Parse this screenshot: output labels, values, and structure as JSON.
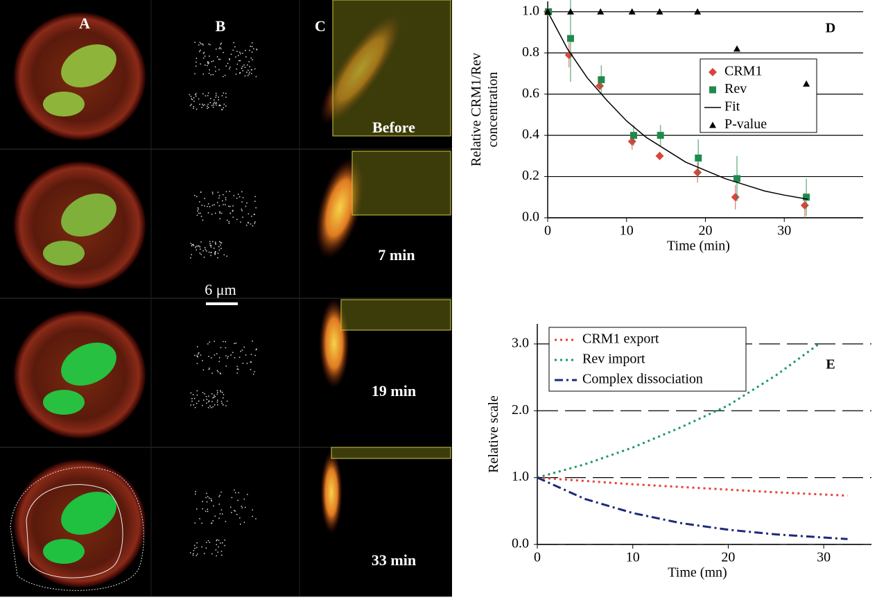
{
  "figure": {
    "panels": [
      "A",
      "B",
      "C"
    ],
    "times": [
      "Before",
      "7 min",
      "19 min",
      "33 min"
    ],
    "scale_bar": "6 μm"
  },
  "chart_data": [
    {
      "type": "scatter",
      "panel_label": "D",
      "xlabel": "Time (min)",
      "ylabel": [
        "Relative CRM1/Rev",
        "concentration"
      ],
      "xlim": [
        0,
        40
      ],
      "xticks": [
        0,
        10,
        20,
        30
      ],
      "ylim": [
        0,
        1.05
      ],
      "yticks": [
        {
          "value": 0,
          "label": "0.0"
        },
        0.2,
        0.4,
        0.6,
        0.8,
        {
          "value": 1,
          "label": "1.0"
        }
      ],
      "grid": true,
      "grid_style": "solid",
      "legend": "right",
      "series": [
        {
          "name": "CRM1",
          "color": "#d9453c",
          "marker": "diamond",
          "x": [
            0,
            2.7,
            6.6,
            10.7,
            14.2,
            19,
            23.8,
            32.6
          ],
          "values": [
            1,
            0.79,
            0.64,
            0.37,
            0.3,
            0.22,
            0.1,
            0.06
          ],
          "errors": [
            0,
            0.06,
            0.02,
            0.04,
            0.02,
            0.05,
            0.06,
            0.06
          ]
        },
        {
          "name": "Rev",
          "color": "#1f8a4c",
          "marker": "square",
          "x": [
            0.1,
            2.9,
            6.8,
            10.9,
            14.3,
            19.1,
            24,
            32.8
          ],
          "values": [
            1,
            0.87,
            0.67,
            0.4,
            0.4,
            0.29,
            0.19,
            0.1
          ],
          "errors": [
            0,
            0.21,
            0.07,
            0.05,
            0.05,
            0.09,
            0.11,
            0.09
          ]
        },
        {
          "name": "Fit",
          "color": "#000000",
          "line": "solid",
          "x": [
            0,
            2.5,
            5,
            7.5,
            10,
            12.5,
            15,
            17.5,
            20,
            22.5,
            25,
            27.5,
            30,
            33
          ],
          "values": [
            1,
            0.82,
            0.68,
            0.57,
            0.47,
            0.39,
            0.33,
            0.27,
            0.23,
            0.19,
            0.16,
            0.13,
            0.11,
            0.09
          ]
        },
        {
          "name": "P-value",
          "color": "#000000",
          "marker": "triangle",
          "x": [
            0,
            2.9,
            6.7,
            10.7,
            14.2,
            19,
            24,
            32.8
          ],
          "values": [
            1,
            1,
            1,
            1,
            1,
            1,
            0.82,
            0.65
          ]
        }
      ]
    },
    {
      "type": "line",
      "panel_label": "E",
      "xlabel": "Time (mn)",
      "ylabel": [
        "Relative scale"
      ],
      "xlim": [
        0,
        35
      ],
      "xticks": [
        0,
        10,
        20,
        30
      ],
      "ylim": [
        0,
        3.3
      ],
      "yticks": [
        {
          "value": 0,
          "label": "0.0"
        },
        {
          "value": 1,
          "label": "1.0"
        },
        {
          "value": 2,
          "label": "2.0"
        },
        {
          "value": 3,
          "label": "3.0"
        }
      ],
      "grid": true,
      "grid_style": "dashed",
      "legend": "top-left",
      "series": [
        {
          "name": "CRM1 export",
          "color": "#e8403a",
          "line": "dotted",
          "x": [
            0,
            5,
            10,
            15,
            20,
            25,
            32.5
          ],
          "values": [
            1,
            0.95,
            0.9,
            0.86,
            0.82,
            0.78,
            0.73
          ]
        },
        {
          "name": "Rev import",
          "color": "#1a9a60",
          "line": "dotted",
          "x": [
            0,
            5,
            10,
            15,
            20,
            25,
            29.5
          ],
          "values": [
            1,
            1.2,
            1.45,
            1.75,
            2.08,
            2.53,
            3
          ]
        },
        {
          "name": "Complex dissociation",
          "color": "#1c2a78",
          "line": "dashdot",
          "x": [
            0,
            5,
            10,
            15,
            20,
            25,
            32.5
          ],
          "values": [
            1,
            0.68,
            0.47,
            0.32,
            0.22,
            0.15,
            0.08
          ]
        }
      ]
    }
  ]
}
